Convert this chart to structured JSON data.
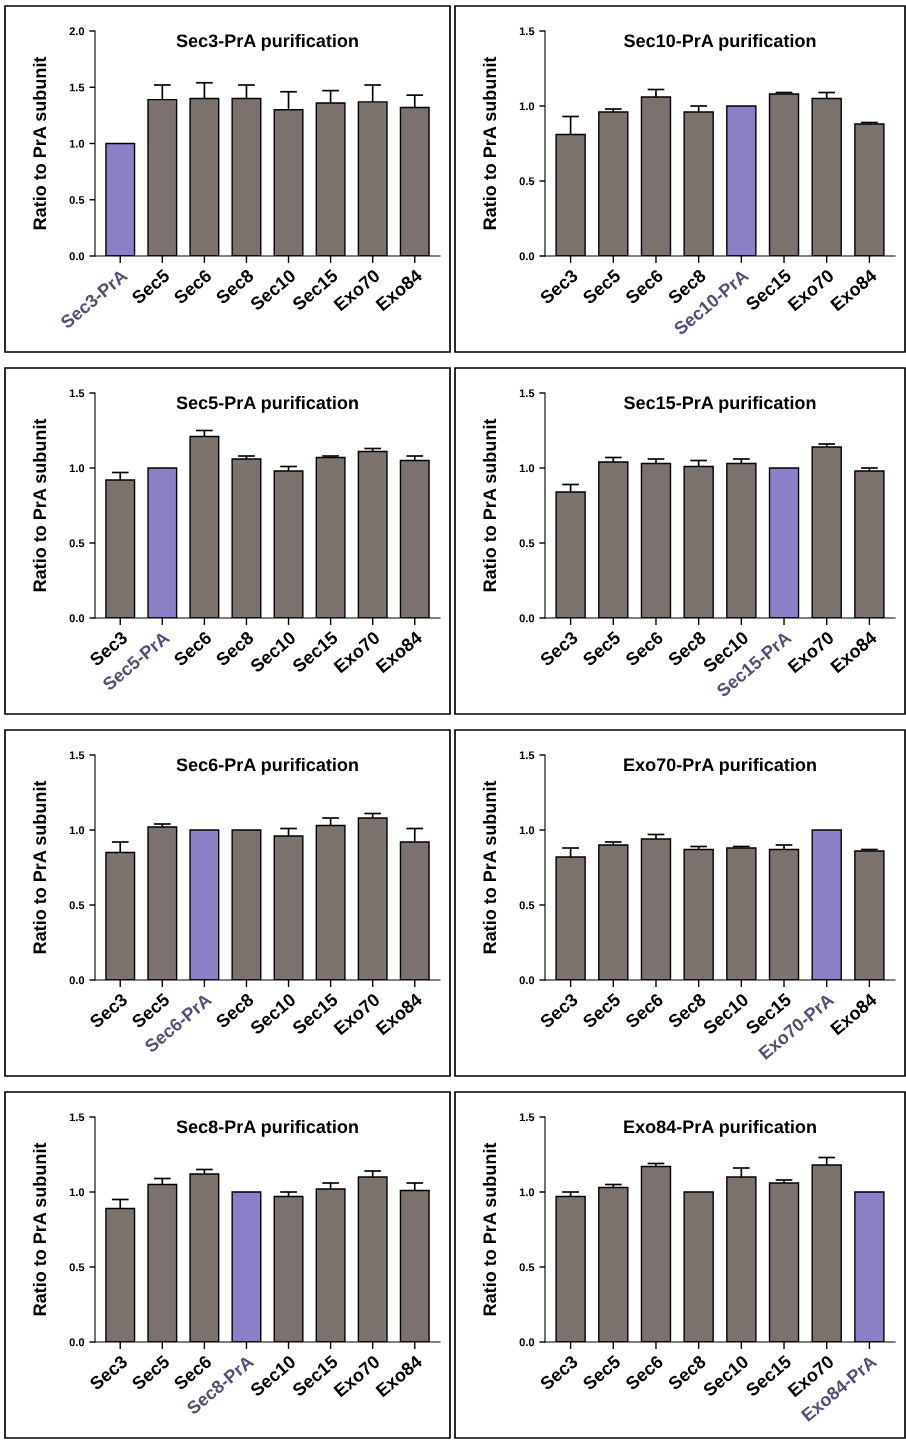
{
  "chart_data": [
    {
      "type": "bar",
      "title": "Sec3-PrA purification",
      "ylabel": "Ratio to PrA subunit",
      "categories": [
        "Sec3-PrA",
        "Sec5",
        "Sec6",
        "Sec8",
        "Sec10",
        "Sec15",
        "Exo70",
        "Exo84"
      ],
      "values": [
        1.0,
        1.39,
        1.4,
        1.4,
        1.3,
        1.36,
        1.37,
        1.32
      ],
      "errors": [
        null,
        0.13,
        0.14,
        0.12,
        0.16,
        0.11,
        0.15,
        0.11
      ],
      "colors": [
        "#8b80c8",
        "#7b726d",
        "#7b726d",
        "#7b726d",
        "#7b726d",
        "#7b726d",
        "#7b726d",
        "#7b726d"
      ],
      "ylim": [
        0,
        2
      ],
      "yticks": [
        {
          "value": 0,
          "label": "0.0"
        },
        {
          "value": 0.5,
          "label": "0.5"
        },
        {
          "value": 1,
          "label": "1.0"
        },
        {
          "value": 1.5,
          "label": "1.5"
        },
        {
          "value": 2,
          "label": "2.0"
        }
      ]
    },
    {
      "type": "bar",
      "title": "Sec10-PrA purification",
      "ylabel": "Ratio to PrA subunit",
      "categories": [
        "Sec3",
        "Sec5",
        "Sec6",
        "Sec8",
        "Sec10-PrA",
        "Sec15",
        "Exo70",
        "Exo84"
      ],
      "values": [
        0.81,
        0.96,
        1.06,
        0.96,
        1.0,
        1.08,
        1.05,
        0.88
      ],
      "errors": [
        0.12,
        0.02,
        0.05,
        0.04,
        null,
        0.01,
        0.04,
        0.01
      ],
      "colors": [
        "#7b726d",
        "#7b726d",
        "#7b726d",
        "#7b726d",
        "#8b80c8",
        "#7b726d",
        "#7b726d",
        "#7b726d"
      ],
      "ylim": [
        0,
        1.5
      ],
      "yticks": [
        {
          "value": 0,
          "label": "0.0"
        },
        {
          "value": 0.5,
          "label": "0.5"
        },
        {
          "value": 1,
          "label": "1.0"
        },
        {
          "value": 1.5,
          "label": "1.5"
        }
      ]
    },
    {
      "type": "bar",
      "title": "Sec5-PrA purification",
      "ylabel": "Ratio to PrA subunit",
      "categories": [
        "Sec3",
        "Sec5-PrA",
        "Sec6",
        "Sec8",
        "Sec10",
        "Sec15",
        "Exo70",
        "Exo84"
      ],
      "values": [
        0.92,
        1.0,
        1.21,
        1.06,
        0.98,
        1.07,
        1.11,
        1.05
      ],
      "errors": [
        0.05,
        null,
        0.04,
        0.02,
        0.03,
        0.01,
        0.02,
        0.03
      ],
      "colors": [
        "#7b726d",
        "#8b80c8",
        "#7b726d",
        "#7b726d",
        "#7b726d",
        "#7b726d",
        "#7b726d",
        "#7b726d"
      ],
      "ylim": [
        0,
        1.5
      ],
      "yticks": [
        {
          "value": 0,
          "label": "0.0"
        },
        {
          "value": 0.5,
          "label": "0.5"
        },
        {
          "value": 1,
          "label": "1.0"
        },
        {
          "value": 1.5,
          "label": "1.5"
        }
      ]
    },
    {
      "type": "bar",
      "title": "Sec15-PrA purification",
      "ylabel": "Ratio to PrA subunit",
      "categories": [
        "Sec3",
        "Sec5",
        "Sec6",
        "Sec8",
        "Sec10",
        "Sec15-PrA",
        "Exo70",
        "Exo84"
      ],
      "values": [
        0.84,
        1.04,
        1.03,
        1.01,
        1.03,
        1.0,
        1.14,
        0.98
      ],
      "errors": [
        0.05,
        0.03,
        0.03,
        0.04,
        0.03,
        null,
        0.02,
        0.02
      ],
      "colors": [
        "#7b726d",
        "#7b726d",
        "#7b726d",
        "#7b726d",
        "#7b726d",
        "#8b80c8",
        "#7b726d",
        "#7b726d"
      ],
      "ylim": [
        0,
        1.5
      ],
      "yticks": [
        {
          "value": 0,
          "label": "0.0"
        },
        {
          "value": 0.5,
          "label": "0.5"
        },
        {
          "value": 1,
          "label": "1.0"
        },
        {
          "value": 1.5,
          "label": "1.5"
        }
      ]
    },
    {
      "type": "bar",
      "title": "Sec6-PrA purification",
      "ylabel": "Ratio to PrA subunit",
      "categories": [
        "Sec3",
        "Sec5",
        "Sec6-PrA",
        "Sec8",
        "Sec10",
        "Sec15",
        "Exo70",
        "Exo84"
      ],
      "values": [
        0.85,
        1.02,
        1.0,
        1.0,
        0.96,
        1.03,
        1.08,
        0.92
      ],
      "errors": [
        0.07,
        0.02,
        null,
        null,
        0.05,
        0.05,
        0.03,
        0.09
      ],
      "colors": [
        "#7b726d",
        "#7b726d",
        "#8b80c8",
        "#7b726d",
        "#7b726d",
        "#7b726d",
        "#7b726d",
        "#7b726d"
      ],
      "ylim": [
        0,
        1.5
      ],
      "yticks": [
        {
          "value": 0,
          "label": "0.0"
        },
        {
          "value": 0.5,
          "label": "0.5"
        },
        {
          "value": 1,
          "label": "1.0"
        },
        {
          "value": 1.5,
          "label": "1.5"
        }
      ]
    },
    {
      "type": "bar",
      "title": "Exo70-PrA purification",
      "ylabel": "Ratio to PrA subunit",
      "categories": [
        "Sec3",
        "Sec5",
        "Sec6",
        "Sec8",
        "Sec10",
        "Sec15",
        "Exo70-PrA",
        "Exo84"
      ],
      "values": [
        0.82,
        0.9,
        0.94,
        0.87,
        0.88,
        0.87,
        1.0,
        0.86
      ],
      "errors": [
        0.06,
        0.02,
        0.03,
        0.02,
        0.01,
        0.03,
        null,
        0.01
      ],
      "colors": [
        "#7b726d",
        "#7b726d",
        "#7b726d",
        "#7b726d",
        "#7b726d",
        "#7b726d",
        "#8b80c8",
        "#7b726d"
      ],
      "ylim": [
        0,
        1.5
      ],
      "yticks": [
        {
          "value": 0,
          "label": "0.0"
        },
        {
          "value": 0.5,
          "label": "0.5"
        },
        {
          "value": 1,
          "label": "1.0"
        },
        {
          "value": 1.5,
          "label": "1.5"
        }
      ]
    },
    {
      "type": "bar",
      "title": "Sec8-PrA purification",
      "ylabel": "Ratio to PrA subunit",
      "categories": [
        "Sec3",
        "Sec5",
        "Sec6",
        "Sec8-PrA",
        "Sec10",
        "Sec15",
        "Exo70",
        "Exo84"
      ],
      "values": [
        0.89,
        1.05,
        1.12,
        1.0,
        0.97,
        1.02,
        1.1,
        1.01
      ],
      "errors": [
        0.06,
        0.04,
        0.03,
        null,
        0.03,
        0.04,
        0.04,
        0.05
      ],
      "colors": [
        "#7b726d",
        "#7b726d",
        "#7b726d",
        "#8b80c8",
        "#7b726d",
        "#7b726d",
        "#7b726d",
        "#7b726d"
      ],
      "ylim": [
        0,
        1.5
      ],
      "yticks": [
        {
          "value": 0,
          "label": "0.0"
        },
        {
          "value": 0.5,
          "label": "0.5"
        },
        {
          "value": 1,
          "label": "1.0"
        },
        {
          "value": 1.5,
          "label": "1.5"
        }
      ]
    },
    {
      "type": "bar",
      "title": "Exo84-PrA purification",
      "ylabel": "Ratio to PrA subunit",
      "categories": [
        "Sec3",
        "Sec5",
        "Sec6",
        "Sec8",
        "Sec10",
        "Sec15",
        "Exo70",
        "Exo84-PrA"
      ],
      "values": [
        0.97,
        1.03,
        1.17,
        1.0,
        1.1,
        1.06,
        1.18,
        1.0
      ],
      "errors": [
        0.03,
        0.02,
        0.02,
        null,
        0.06,
        0.02,
        0.05,
        null
      ],
      "colors": [
        "#7b726d",
        "#7b726d",
        "#7b726d",
        "#7b726d",
        "#7b726d",
        "#7b726d",
        "#7b726d",
        "#8b80c8"
      ],
      "ylim": [
        0,
        1.5
      ],
      "yticks": [
        {
          "value": 0,
          "label": "0.0"
        },
        {
          "value": 0.5,
          "label": "0.5"
        },
        {
          "value": 1,
          "label": "1.0"
        },
        {
          "value": 1.5,
          "label": "1.5"
        }
      ]
    }
  ]
}
